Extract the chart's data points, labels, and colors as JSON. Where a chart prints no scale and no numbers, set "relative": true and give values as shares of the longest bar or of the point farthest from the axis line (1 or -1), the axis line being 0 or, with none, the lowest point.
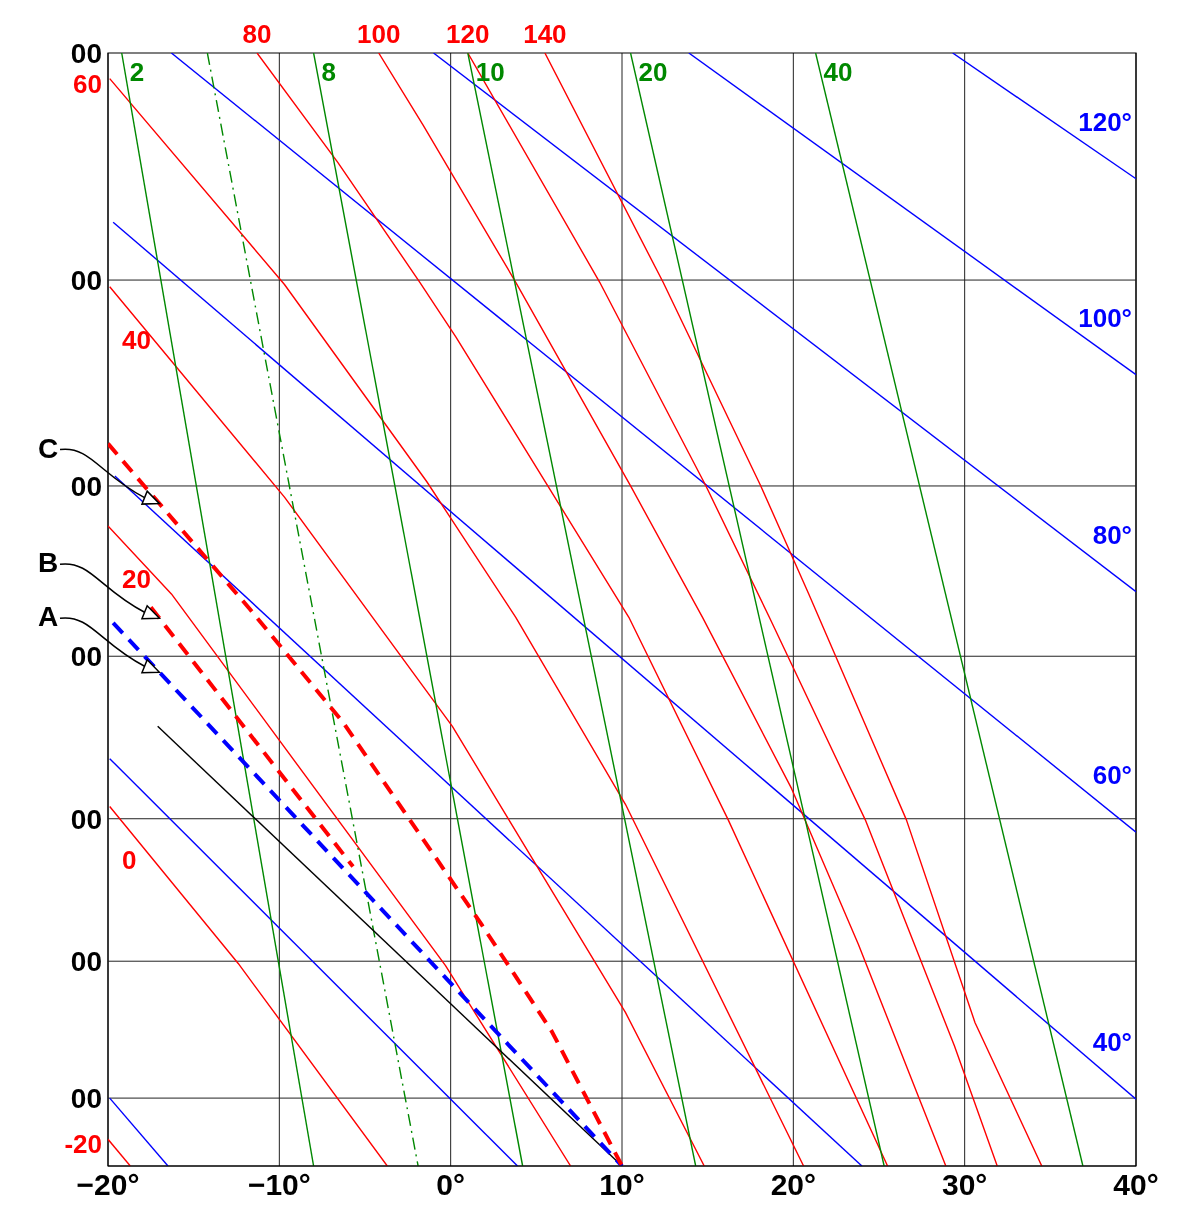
{
  "chart_data": {
    "type": "line",
    "relative": true,
    "xlim": [
      -20,
      40
    ],
    "xticks": [
      {
        "value": -20,
        "label": "−20°"
      },
      {
        "value": -10,
        "label": "−10°"
      },
      {
        "value": 0,
        "label": "0°"
      },
      {
        "value": 10,
        "label": "10°"
      },
      {
        "value": 20,
        "label": "20°"
      },
      {
        "value": 30,
        "label": "30°"
      },
      {
        "value": 40,
        "label": "40°"
      }
    ],
    "grid": "x",
    "ref_lines": [
      {
        "axis": "y",
        "value": 0.796
      },
      {
        "axis": "y",
        "value": 0.611
      },
      {
        "axis": "y",
        "value": 0.458
      },
      {
        "axis": "y",
        "value": 0.312
      },
      {
        "axis": "y",
        "value": 0.184
      },
      {
        "axis": "y",
        "value": 0.061
      }
    ],
    "annotations": [
      "C",
      "B",
      "A",
      "00",
      "00",
      "00",
      "00",
      "00",
      "00",
      "00"
    ],
    "series": [
      {
        "name": "120°",
        "color": "#0000ff",
        "x": [
          29.3,
          40
        ],
        "values": [
          1,
          0.887
        ]
      },
      {
        "name": "100°",
        "color": "#0000ff",
        "x": [
          13.9,
          40
        ],
        "values": [
          1,
          0.711
        ]
      },
      {
        "name": "80°",
        "color": "#0000ff",
        "x": [
          -1.0,
          40
        ],
        "values": [
          1,
          0.516
        ]
      },
      {
        "name": "60°",
        "color": "#0000ff",
        "x": [
          -16.3,
          40
        ],
        "values": [
          1,
          0.3
        ]
      },
      {
        "name": "40°",
        "color": "#0000ff",
        "x": [
          -19.7,
          40
        ],
        "values": [
          0.848,
          0.06
        ]
      },
      {
        "color": "#0000ff",
        "x": [
          -19.6,
          24.0
        ],
        "values": [
          0.62,
          0
        ]
      },
      {
        "color": "#0000ff",
        "x": [
          -19.9,
          3.9
        ],
        "values": [
          0.366,
          0
        ]
      },
      {
        "color": "#0000ff",
        "x": [
          -19.9,
          -16.5
        ],
        "values": [
          0.061,
          0
        ]
      },
      {
        "name": "-20",
        "color": "#ff0000",
        "x": [
          -20,
          -18.7
        ],
        "values": [
          0.024,
          0
        ]
      },
      {
        "name": "0",
        "color": "#ff0000",
        "x": [
          -19.9,
          -12.4,
          -3.7
        ],
        "values": [
          0.323,
          0.182,
          0
        ]
      },
      {
        "name": "20",
        "color": "#ff0000",
        "x": [
          -20,
          -16.3,
          -0.3,
          7.0
        ],
        "values": [
          0.575,
          0.514,
          0.18,
          0
        ]
      },
      {
        "name": "40",
        "color": "#ff0000",
        "x": [
          -19.9,
          -9.7,
          0.1,
          10.2,
          14.8
        ],
        "values": [
          0.79,
          0.601,
          0.395,
          0.138,
          0
        ]
      },
      {
        "name": "60",
        "color": "#ff0000",
        "x": [
          -19.9,
          -9.7,
          -1.4,
          3.8,
          10.2,
          20.6
        ],
        "values": [
          0.977,
          0.792,
          0.615,
          0.493,
          0.325,
          0
        ]
      },
      {
        "name": "80",
        "color": "#ff0000",
        "x": [
          -11.3,
          -6.6,
          -1.8,
          0.3,
          10.4,
          16.2,
          25.5
        ],
        "values": [
          1,
          0.902,
          0.794,
          0.745,
          0.493,
          0.311,
          0
        ]
      },
      {
        "name": "100",
        "color": "#ff0000",
        "x": [
          -4.2,
          -1.6,
          3.8,
          10.5,
          14.7,
          19.9,
          23.8,
          28.9
        ],
        "values": [
          1,
          0.935,
          0.794,
          0.611,
          0.493,
          0.339,
          0.199,
          0
        ]
      },
      {
        "name": "120",
        "color": "#ff0000",
        "x": [
          1.0,
          8.7,
          14.9,
          18.6,
          24.2,
          29.4,
          31.9
        ],
        "values": [
          1,
          0.794,
          0.611,
          0.493,
          0.311,
          0.108,
          0
        ]
      },
      {
        "name": "140",
        "color": "#ff0000",
        "x": [
          5.5,
          12.4,
          18.1,
          20.9,
          26.6,
          30.6,
          34.5
        ],
        "values": [
          1,
          0.794,
          0.611,
          0.514,
          0.311,
          0.129,
          0
        ]
      },
      {
        "name": "2",
        "color": "#008800",
        "x": [
          -19.2,
          -8.0
        ],
        "values": [
          1,
          0
        ]
      },
      {
        "color": "#008800",
        "x": [
          -14.2,
          -1.9
        ],
        "values": [
          1,
          0
        ],
        "line_style": "dotted"
      },
      {
        "name": "8",
        "color": "#008800",
        "x": [
          -8.0,
          4.2
        ],
        "values": [
          1,
          0
        ]
      },
      {
        "name": "10",
        "color": "#008800",
        "x": [
          1.0,
          14.3
        ],
        "values": [
          1,
          0
        ]
      },
      {
        "name": "20",
        "color": "#008800",
        "x": [
          10.5,
          25.3
        ],
        "values": [
          1,
          0
        ]
      },
      {
        "name": "40",
        "color": "#008800",
        "x": [
          21.3,
          36.9
        ],
        "values": [
          1,
          0
        ]
      },
      {
        "color": "#000000",
        "x": [
          -17.1,
          10.0
        ],
        "values": [
          0.395,
          0
        ]
      },
      {
        "color": "#0000ff",
        "x": [
          -19.7,
          10.0
        ],
        "values": [
          0.488,
          0
        ],
        "line_style": "dashed"
      },
      {
        "color": "#ff0000",
        "x": [
          -17.5,
          -5.7
        ],
        "values": [
          0.502,
          0.269
        ],
        "line_style": "dashed"
      },
      {
        "color": "#ff0000",
        "x": [
          -20,
          -11.7,
          -6.3,
          1.8,
          5.9,
          10.0
        ],
        "values": [
          0.649,
          0.5,
          0.399,
          0.217,
          0.121,
          0
        ],
        "line_style": "dashed"
      }
    ]
  }
}
